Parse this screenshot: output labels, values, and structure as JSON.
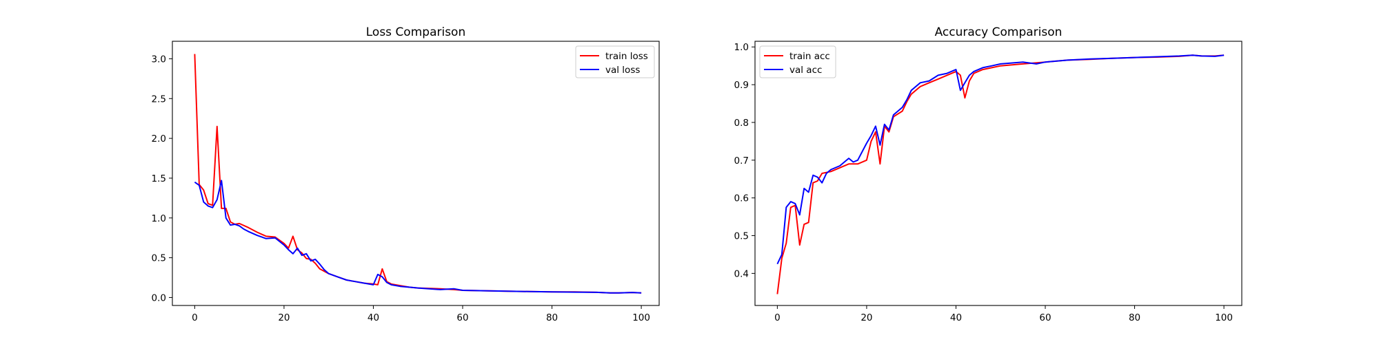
{
  "chart_data": [
    {
      "type": "line",
      "title": "Loss Comparison",
      "xlabel": "",
      "ylabel": "",
      "xlim": [
        -5,
        104
      ],
      "ylim": [
        -0.1,
        3.22
      ],
      "xticks": [
        0,
        20,
        40,
        60,
        80,
        100
      ],
      "yticks": [
        0.0,
        0.5,
        1.0,
        1.5,
        2.0,
        2.5,
        3.0
      ],
      "ytick_decimals": 1,
      "grid": false,
      "legend": "upper right",
      "series": [
        {
          "name": "train loss",
          "color": "#ff0000",
          "points": [
            [
              0,
              3.06
            ],
            [
              1,
              1.42
            ],
            [
              2,
              1.35
            ],
            [
              3,
              1.18
            ],
            [
              4,
              1.16
            ],
            [
              5,
              2.15
            ],
            [
              6,
              1.12
            ],
            [
              7,
              1.12
            ],
            [
              8,
              0.95
            ],
            [
              9,
              0.92
            ],
            [
              10,
              0.93
            ],
            [
              12,
              0.88
            ],
            [
              14,
              0.82
            ],
            [
              16,
              0.77
            ],
            [
              18,
              0.76
            ],
            [
              20,
              0.68
            ],
            [
              21,
              0.62
            ],
            [
              22,
              0.77
            ],
            [
              23,
              0.6
            ],
            [
              24,
              0.56
            ],
            [
              25,
              0.49
            ],
            [
              26,
              0.48
            ],
            [
              27,
              0.43
            ],
            [
              28,
              0.36
            ],
            [
              30,
              0.3
            ],
            [
              32,
              0.26
            ],
            [
              34,
              0.22
            ],
            [
              36,
              0.2
            ],
            [
              38,
              0.18
            ],
            [
              40,
              0.17
            ],
            [
              41,
              0.16
            ],
            [
              42,
              0.36
            ],
            [
              43,
              0.2
            ],
            [
              44,
              0.17
            ],
            [
              46,
              0.15
            ],
            [
              48,
              0.13
            ],
            [
              50,
              0.12
            ],
            [
              55,
              0.11
            ],
            [
              58,
              0.1
            ],
            [
              60,
              0.09
            ],
            [
              65,
              0.085
            ],
            [
              70,
              0.08
            ],
            [
              75,
              0.075
            ],
            [
              80,
              0.07
            ],
            [
              85,
              0.07
            ],
            [
              90,
              0.065
            ],
            [
              93,
              0.058
            ],
            [
              95,
              0.058
            ],
            [
              98,
              0.063
            ],
            [
              100,
              0.058
            ]
          ]
        },
        {
          "name": "val loss",
          "color": "#0000ff",
          "points": [
            [
              0,
              1.45
            ],
            [
              1,
              1.41
            ],
            [
              2,
              1.2
            ],
            [
              3,
              1.15
            ],
            [
              4,
              1.13
            ],
            [
              5,
              1.23
            ],
            [
              6,
              1.47
            ],
            [
              7,
              1.0
            ],
            [
              8,
              0.91
            ],
            [
              9,
              0.92
            ],
            [
              10,
              0.9
            ],
            [
              11,
              0.86
            ],
            [
              12,
              0.83
            ],
            [
              14,
              0.78
            ],
            [
              16,
              0.74
            ],
            [
              18,
              0.75
            ],
            [
              20,
              0.66
            ],
            [
              21,
              0.6
            ],
            [
              22,
              0.55
            ],
            [
              23,
              0.62
            ],
            [
              24,
              0.53
            ],
            [
              25,
              0.55
            ],
            [
              26,
              0.46
            ],
            [
              27,
              0.48
            ],
            [
              28,
              0.42
            ],
            [
              29,
              0.35
            ],
            [
              30,
              0.3
            ],
            [
              32,
              0.26
            ],
            [
              34,
              0.22
            ],
            [
              36,
              0.2
            ],
            [
              38,
              0.18
            ],
            [
              40,
              0.16
            ],
            [
              41,
              0.29
            ],
            [
              42,
              0.26
            ],
            [
              43,
              0.19
            ],
            [
              44,
              0.16
            ],
            [
              46,
              0.14
            ],
            [
              48,
              0.13
            ],
            [
              50,
              0.12
            ],
            [
              55,
              0.1
            ],
            [
              58,
              0.11
            ],
            [
              60,
              0.09
            ],
            [
              65,
              0.085
            ],
            [
              70,
              0.08
            ],
            [
              75,
              0.075
            ],
            [
              80,
              0.07
            ],
            [
              85,
              0.068
            ],
            [
              90,
              0.065
            ],
            [
              93,
              0.058
            ],
            [
              95,
              0.058
            ],
            [
              98,
              0.063
            ],
            [
              100,
              0.058
            ]
          ]
        }
      ]
    },
    {
      "type": "line",
      "title": "Accuracy Comparison",
      "xlabel": "",
      "ylabel": "",
      "xlim": [
        -5,
        104
      ],
      "ylim": [
        0.315,
        1.015
      ],
      "xticks": [
        0,
        20,
        40,
        60,
        80,
        100
      ],
      "yticks": [
        0.4,
        0.5,
        0.6,
        0.7,
        0.8,
        0.9,
        1.0
      ],
      "ytick_decimals": 1,
      "grid": false,
      "legend": "upper left",
      "series": [
        {
          "name": "train acc",
          "color": "#ff0000",
          "points": [
            [
              0,
              0.345
            ],
            [
              1,
              0.44
            ],
            [
              2,
              0.48
            ],
            [
              3,
              0.575
            ],
            [
              4,
              0.58
            ],
            [
              5,
              0.475
            ],
            [
              6,
              0.53
            ],
            [
              7,
              0.535
            ],
            [
              8,
              0.64
            ],
            [
              9,
              0.645
            ],
            [
              10,
              0.665
            ],
            [
              12,
              0.67
            ],
            [
              14,
              0.68
            ],
            [
              16,
              0.69
            ],
            [
              18,
              0.69
            ],
            [
              20,
              0.7
            ],
            [
              21,
              0.75
            ],
            [
              22,
              0.775
            ],
            [
              23,
              0.69
            ],
            [
              24,
              0.79
            ],
            [
              25,
              0.775
            ],
            [
              26,
              0.815
            ],
            [
              28,
              0.83
            ],
            [
              29,
              0.855
            ],
            [
              30,
              0.875
            ],
            [
              32,
              0.895
            ],
            [
              34,
              0.905
            ],
            [
              36,
              0.915
            ],
            [
              38,
              0.925
            ],
            [
              40,
              0.935
            ],
            [
              41,
              0.925
            ],
            [
              42,
              0.865
            ],
            [
              43,
              0.91
            ],
            [
              44,
              0.93
            ],
            [
              46,
              0.94
            ],
            [
              48,
              0.945
            ],
            [
              50,
              0.95
            ],
            [
              55,
              0.955
            ],
            [
              60,
              0.96
            ],
            [
              65,
              0.965
            ],
            [
              70,
              0.967
            ],
            [
              75,
              0.97
            ],
            [
              80,
              0.972
            ],
            [
              85,
              0.973
            ],
            [
              90,
              0.975
            ],
            [
              93,
              0.978
            ],
            [
              95,
              0.976
            ],
            [
              98,
              0.976
            ],
            [
              100,
              0.978
            ]
          ]
        },
        {
          "name": "val acc",
          "color": "#0000ff",
          "points": [
            [
              0,
              0.425
            ],
            [
              1,
              0.45
            ],
            [
              2,
              0.575
            ],
            [
              3,
              0.59
            ],
            [
              4,
              0.585
            ],
            [
              5,
              0.555
            ],
            [
              6,
              0.625
            ],
            [
              7,
              0.615
            ],
            [
              8,
              0.66
            ],
            [
              9,
              0.655
            ],
            [
              10,
              0.64
            ],
            [
              11,
              0.665
            ],
            [
              12,
              0.675
            ],
            [
              14,
              0.685
            ],
            [
              16,
              0.705
            ],
            [
              17,
              0.695
            ],
            [
              18,
              0.7
            ],
            [
              20,
              0.745
            ],
            [
              21,
              0.765
            ],
            [
              22,
              0.79
            ],
            [
              23,
              0.74
            ],
            [
              24,
              0.795
            ],
            [
              25,
              0.78
            ],
            [
              26,
              0.82
            ],
            [
              28,
              0.84
            ],
            [
              29,
              0.86
            ],
            [
              30,
              0.885
            ],
            [
              32,
              0.905
            ],
            [
              34,
              0.91
            ],
            [
              36,
              0.925
            ],
            [
              38,
              0.93
            ],
            [
              40,
              0.94
            ],
            [
              41,
              0.885
            ],
            [
              42,
              0.905
            ],
            [
              43,
              0.925
            ],
            [
              44,
              0.935
            ],
            [
              46,
              0.945
            ],
            [
              48,
              0.95
            ],
            [
              50,
              0.955
            ],
            [
              55,
              0.96
            ],
            [
              58,
              0.955
            ],
            [
              60,
              0.96
            ],
            [
              65,
              0.965
            ],
            [
              70,
              0.968
            ],
            [
              75,
              0.97
            ],
            [
              80,
              0.972
            ],
            [
              85,
              0.974
            ],
            [
              90,
              0.976
            ],
            [
              93,
              0.978
            ],
            [
              95,
              0.976
            ],
            [
              98,
              0.975
            ],
            [
              100,
              0.978
            ]
          ]
        }
      ]
    }
  ]
}
